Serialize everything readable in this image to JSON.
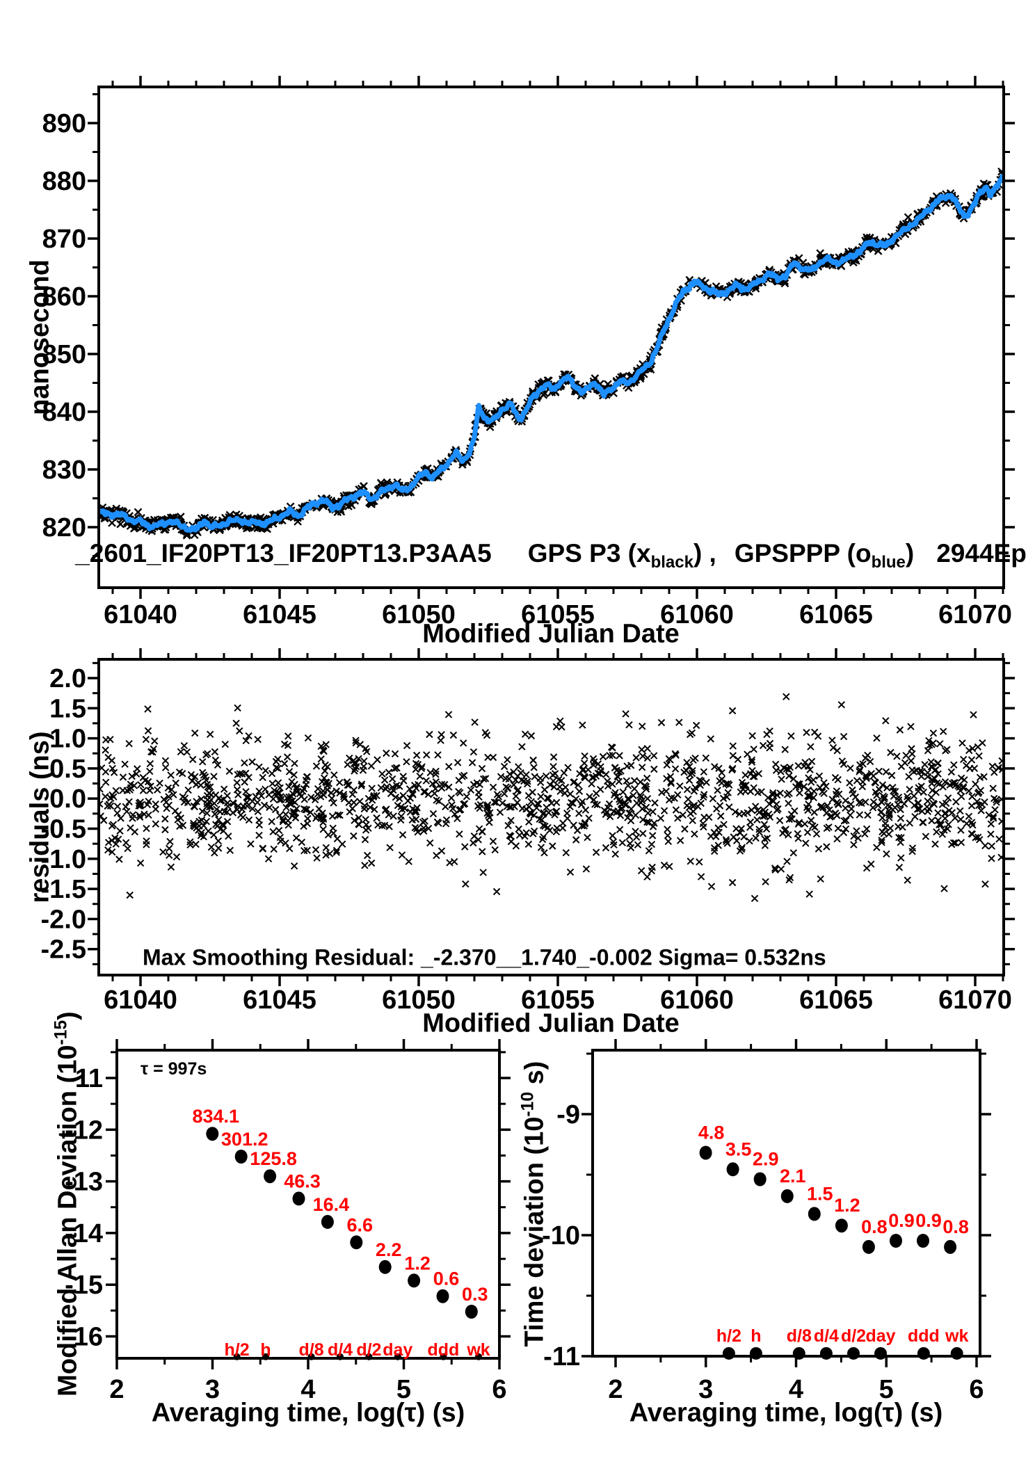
{
  "colors": {
    "background": "#ffffff",
    "axis": "#000000",
    "data_black": "#000000",
    "data_blue": "#1e8fff",
    "annotation_red": "#ff0000"
  },
  "top_title": {
    "file_id": "_2601_IF20PT13_IF20PT13.P3AA5",
    "series1_pre": "GPS P3 (x",
    "series1_sub": "black",
    "series1_post": ") ,",
    "series2_pre": "GPSPPP (o",
    "series2_sub": "blue",
    "series2_post": ")",
    "epochs": "2944Ep"
  },
  "mdev_ylabel": {
    "pre": "Modified Allan Deviation (10",
    "sup": "-15",
    "post": ")"
  },
  "tdev_ylabel": {
    "pre": "Time deviation (10",
    "sup": "-10",
    "post": " s)"
  },
  "chart_data": [
    {
      "id": "gps-link-time-series",
      "type": "line",
      "title": "_2601_IF20PT13_IF20PT13.P3AA5  GPS P3 (x_black) ,  GPSPPP (o_blue)  2944Ep",
      "xlabel": "Modified Julian Date",
      "ylabel": "nanosecond",
      "xlim": [
        61038.5,
        61071.0
      ],
      "ylim": [
        809.5,
        896.3
      ],
      "x_tick_values": [
        61040,
        61045,
        61050,
        61055,
        61060,
        61065,
        61070
      ],
      "x_tick_labels": [
        "61040",
        "61045",
        "61050",
        "61055",
        "61060",
        "61065",
        "61070"
      ],
      "x_minor_step": 1,
      "y_tick_values": [
        890,
        880,
        870,
        860,
        850,
        840,
        830,
        820
      ],
      "y_tick_labels": [
        "890",
        "880",
        "870",
        "860",
        "850",
        "840",
        "830",
        "820"
      ],
      "y_minor_step": 5,
      "epochs_label": "2944Ep",
      "series": [
        {
          "name": "GPS P3",
          "marker": "x",
          "color": "#000000",
          "description": "raw GPS P3 epochs scattered about the smoothed curve, spread ≈ 0.5 ns"
        },
        {
          "name": "GPSPPP",
          "marker": "o",
          "color": "#1e8fff",
          "description": "smoothed GPSPPP solution drawn through curve_anchors_mjd_ns"
        }
      ],
      "curve_anchors_mjd_ns": [
        [
          61038.5,
          822.6
        ],
        [
          61038.9,
          822.3
        ],
        [
          61039.3,
          822.1
        ],
        [
          61039.7,
          821.2
        ],
        [
          61040.0,
          820.9
        ],
        [
          61040.4,
          820.1
        ],
        [
          61040.8,
          820.5
        ],
        [
          61041.1,
          821.1
        ],
        [
          61041.4,
          820.3
        ],
        [
          61041.7,
          819.8
        ],
        [
          61042.0,
          819.5
        ],
        [
          61042.3,
          821.2
        ],
        [
          61042.55,
          819.9
        ],
        [
          61042.9,
          820.4
        ],
        [
          61043.2,
          821.0
        ],
        [
          61043.6,
          821.3
        ],
        [
          61043.9,
          820.7
        ],
        [
          61044.2,
          820.9
        ],
        [
          61044.5,
          820.5
        ],
        [
          61044.8,
          821.4
        ],
        [
          61045.1,
          822.0
        ],
        [
          61045.4,
          822.7
        ],
        [
          61045.7,
          822.0
        ],
        [
          61046.0,
          823.3
        ],
        [
          61046.3,
          824.3
        ],
        [
          61046.6,
          824.6
        ],
        [
          61046.9,
          823.5
        ],
        [
          61047.2,
          823.9
        ],
        [
          61047.5,
          825.0
        ],
        [
          61047.8,
          825.7
        ],
        [
          61048.05,
          825.9
        ],
        [
          61048.3,
          824.9
        ],
        [
          61048.6,
          825.9
        ],
        [
          61048.9,
          826.7
        ],
        [
          61049.15,
          827.4
        ],
        [
          61049.4,
          826.2
        ],
        [
          61049.7,
          827.0
        ],
        [
          61050.0,
          828.6
        ],
        [
          61050.25,
          829.6
        ],
        [
          61050.5,
          828.5
        ],
        [
          61050.8,
          830.0
        ],
        [
          61051.1,
          831.4
        ],
        [
          61051.35,
          832.7
        ],
        [
          61051.6,
          831.5
        ],
        [
          61051.85,
          833.2
        ],
        [
          61052.0,
          835.5
        ],
        [
          61052.15,
          840.8
        ],
        [
          61052.3,
          839.6
        ],
        [
          61052.5,
          838.3
        ],
        [
          61052.75,
          838.8
        ],
        [
          61053.0,
          840.4
        ],
        [
          61053.3,
          841.3
        ],
        [
          61053.6,
          838.7
        ],
        [
          61053.85,
          840.2
        ],
        [
          61054.1,
          842.4
        ],
        [
          61054.35,
          843.9
        ],
        [
          61054.6,
          844.6
        ],
        [
          61054.85,
          843.8
        ],
        [
          61055.1,
          845.2
        ],
        [
          61055.35,
          845.9
        ],
        [
          61055.6,
          844.6
        ],
        [
          61055.9,
          843.3
        ],
        [
          61056.15,
          844.3
        ],
        [
          61056.35,
          845.1
        ],
        [
          61056.65,
          842.9
        ],
        [
          61056.9,
          843.8
        ],
        [
          61057.2,
          845.3
        ],
        [
          61057.5,
          844.9
        ],
        [
          61057.8,
          846.2
        ],
        [
          61058.1,
          847.4
        ],
        [
          61058.35,
          848.8
        ],
        [
          61058.6,
          851.5
        ],
        [
          61058.85,
          854.5
        ],
        [
          61059.1,
          857.2
        ],
        [
          61059.35,
          859.6
        ],
        [
          61059.6,
          861.3
        ],
        [
          61059.9,
          862.4
        ],
        [
          61060.15,
          861.9
        ],
        [
          61060.45,
          860.9
        ],
        [
          61060.8,
          860.3
        ],
        [
          61061.1,
          860.9
        ],
        [
          61061.4,
          861.9
        ],
        [
          61061.7,
          861.3
        ],
        [
          61062.0,
          861.8
        ],
        [
          61062.3,
          862.9
        ],
        [
          61062.6,
          863.9
        ],
        [
          61062.9,
          863.0
        ],
        [
          61063.2,
          863.6
        ],
        [
          61063.5,
          865.8
        ],
        [
          61063.8,
          864.8
        ],
        [
          61064.1,
          864.4
        ],
        [
          61064.4,
          865.9
        ],
        [
          61064.7,
          866.4
        ],
        [
          61065.0,
          865.8
        ],
        [
          61065.3,
          866.2
        ],
        [
          61065.6,
          867.1
        ],
        [
          61065.9,
          867.9
        ],
        [
          61066.2,
          869.4
        ],
        [
          61066.5,
          869.0
        ],
        [
          61066.8,
          868.7
        ],
        [
          61067.1,
          870.3
        ],
        [
          61067.4,
          871.2
        ],
        [
          61067.7,
          872.4
        ],
        [
          61068.0,
          873.5
        ],
        [
          61068.3,
          874.9
        ],
        [
          61068.6,
          876.3
        ],
        [
          61068.9,
          877.3
        ],
        [
          61069.15,
          877.6
        ],
        [
          61069.4,
          875.3
        ],
        [
          61069.6,
          873.9
        ],
        [
          61069.8,
          874.7
        ],
        [
          61070.0,
          876.3
        ],
        [
          61070.2,
          878.0
        ],
        [
          61070.4,
          879.1
        ],
        [
          61070.55,
          877.6
        ],
        [
          61070.7,
          878.4
        ],
        [
          61071.0,
          880.8
        ]
      ]
    },
    {
      "id": "smoothing-residuals",
      "type": "scatter",
      "xlabel": "Modified Julian Date",
      "ylabel": "residuals (ns)",
      "xlim": [
        61038.5,
        61071.0
      ],
      "ylim": [
        -2.93,
        2.31
      ],
      "x_tick_values": [
        61040,
        61045,
        61050,
        61055,
        61060,
        61065,
        61070
      ],
      "x_tick_labels": [
        "61040",
        "61045",
        "61050",
        "61055",
        "61060",
        "61065",
        "61070"
      ],
      "x_minor_step": 1,
      "y_tick_values": [
        2.0,
        1.5,
        1.0,
        0.5,
        0.0,
        -0.5,
        -1.0,
        -1.5,
        -2.0,
        -2.5
      ],
      "y_tick_labels": [
        "2.0",
        "1.5",
        "1.0",
        "0.5",
        "0.0",
        "-0.5",
        "-1.0",
        "-1.5",
        "-2.0",
        "-2.5"
      ],
      "y_minor_step": 0.25,
      "marker": "x",
      "color": "#000000",
      "n_points": 1500,
      "annotation": "Max Smoothing Residual: _-2.370__1.740_-0.002  Sigma= 0.532ns",
      "stats": {
        "min_ns": -2.37,
        "max_ns": 1.74,
        "mean_ns": -0.002,
        "sigma_ns": 0.532
      }
    },
    {
      "id": "modified-allan-deviation",
      "type": "scatter",
      "xlabel": "Averaging time, log(τ) (s)",
      "ylabel": "Modified Allan Deviation (10^-15)",
      "tau_annotation": "τ = 997s",
      "xlim": [
        2,
        6
      ],
      "ylim": [
        -16.42,
        -10.46
      ],
      "x_tick_values": [
        2,
        3,
        4,
        5,
        6
      ],
      "x_tick_labels": [
        "2",
        "3",
        "4",
        "5",
        "6"
      ],
      "x_minor_step": 0.5,
      "y_tick_values": [
        -11,
        -12,
        -13,
        -14,
        -15,
        -16
      ],
      "y_tick_labels": [
        "-11",
        "-12",
        "-13",
        "-14",
        "-15",
        "-16"
      ],
      "y_minor_step": 0.5,
      "marker_color": "#000000",
      "label_color": "#ff0000",
      "points": [
        {
          "tau_s": 997,
          "mdev_1e15": 834.1,
          "label": "834.1"
        },
        {
          "tau_s": 1994,
          "mdev_1e15": 301.2,
          "label": "301.2"
        },
        {
          "tau_s": 3988,
          "mdev_1e15": 125.8,
          "label": "125.8"
        },
        {
          "tau_s": 7976,
          "mdev_1e15": 46.3,
          "label": "46.3"
        },
        {
          "tau_s": 15952,
          "mdev_1e15": 16.4,
          "label": "16.4"
        },
        {
          "tau_s": 31904,
          "mdev_1e15": 6.6,
          "label": "6.6"
        },
        {
          "tau_s": 63808,
          "mdev_1e15": 2.2,
          "label": "2.2"
        },
        {
          "tau_s": 127616,
          "mdev_1e15": 1.2,
          "label": "1.2"
        },
        {
          "tau_s": 255232,
          "mdev_1e15": 0.6,
          "label": "0.6"
        },
        {
          "tau_s": 510464,
          "mdev_1e15": 0.3,
          "label": "0.3"
        }
      ],
      "reference_marks": [
        {
          "label": "h/2",
          "tau_s": 1800
        },
        {
          "label": "h",
          "tau_s": 3600
        },
        {
          "label": "d/8",
          "tau_s": 10800
        },
        {
          "label": "d/4",
          "tau_s": 21600
        },
        {
          "label": "d/2",
          "tau_s": 43200
        },
        {
          "label": "day",
          "tau_s": 86400
        },
        {
          "label": "ddd",
          "tau_s": 259200
        },
        {
          "label": "wk",
          "tau_s": 604800
        }
      ]
    },
    {
      "id": "time-deviation",
      "type": "scatter",
      "xlabel": "Averaging time, log(τ) (s)",
      "ylabel": "Time deviation (10^-10 s)",
      "xlim": [
        2,
        6
      ],
      "ylim": [
        -11,
        -8.47
      ],
      "x_tick_values": [
        2,
        3,
        4,
        5,
        6
      ],
      "x_tick_labels": [
        "2",
        "3",
        "4",
        "5",
        "6"
      ],
      "x_minor_step": 0.5,
      "y_tick_values": [
        -9,
        -10,
        -11
      ],
      "y_tick_labels": [
        "-9",
        "-10",
        "-11"
      ],
      "y_minor_step": 0.5,
      "marker_color": "#000000",
      "label_color": "#ff0000",
      "points": [
        {
          "tau_s": 997,
          "tdev_1e10": 4.8,
          "label": "4.8"
        },
        {
          "tau_s": 1994,
          "tdev_1e10": 3.5,
          "label": "3.5"
        },
        {
          "tau_s": 3988,
          "tdev_1e10": 2.9,
          "label": "2.9"
        },
        {
          "tau_s": 7976,
          "tdev_1e10": 2.1,
          "label": "2.1"
        },
        {
          "tau_s": 15952,
          "tdev_1e10": 1.5,
          "label": "1.5"
        },
        {
          "tau_s": 31904,
          "tdev_1e10": 1.2,
          "label": "1.2"
        },
        {
          "tau_s": 63808,
          "tdev_1e10": 0.8,
          "label": "0.8"
        },
        {
          "tau_s": 127616,
          "tdev_1e10": 0.9,
          "label": "0.9"
        },
        {
          "tau_s": 255232,
          "tdev_1e10": 0.9,
          "label": "0.9"
        },
        {
          "tau_s": 510464,
          "tdev_1e10": 0.8,
          "label": "0.8"
        }
      ],
      "reference_marks": [
        {
          "label": "h/2",
          "tau_s": 1800
        },
        {
          "label": "h",
          "tau_s": 3600
        },
        {
          "label": "d/8",
          "tau_s": 10800
        },
        {
          "label": "d/4",
          "tau_s": 21600
        },
        {
          "label": "d/2",
          "tau_s": 43200
        },
        {
          "label": "day",
          "tau_s": 86400
        },
        {
          "label": "ddd",
          "tau_s": 259200
        },
        {
          "label": "wk",
          "tau_s": 604800
        }
      ]
    }
  ]
}
